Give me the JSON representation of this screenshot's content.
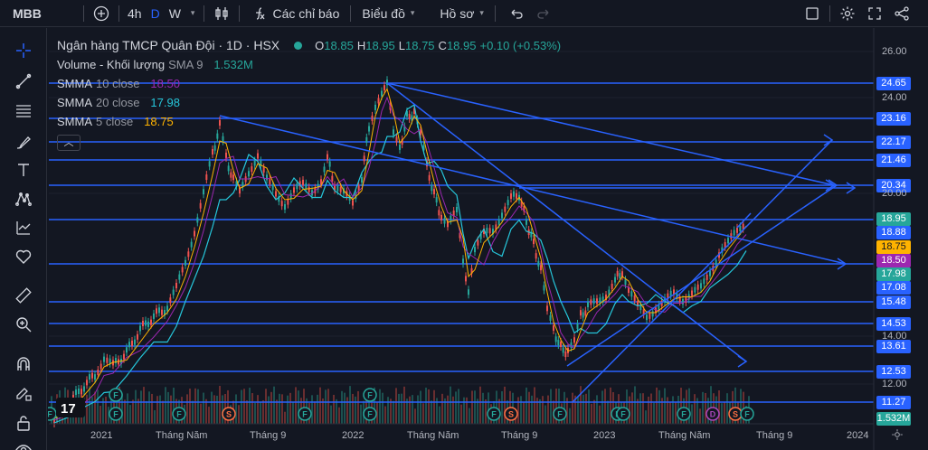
{
  "toolbar": {
    "symbol": "MBB",
    "intervals": [
      "4h",
      "D",
      "W"
    ],
    "active_interval": "D",
    "indicators_label": "Các chỉ báo",
    "chart_type_label": "Biểu đồ",
    "profile_label": "Hồ sơ"
  },
  "legend": {
    "title": "Ngân hàng TMCP Quân Đội · 1D · HSX",
    "ohlc": {
      "o_label": "O",
      "o": "18.85",
      "h_label": "H",
      "h": "18.95",
      "l_label": "L",
      "l": "18.75",
      "c_label": "C",
      "c": "18.95",
      "change": "+0.10 (+0.53%)"
    },
    "volume": {
      "name": "Volume - Khối lượng",
      "sub": "SMA 9",
      "value": "1.532M",
      "color": "#26a69a"
    },
    "smma10": {
      "name": "SMMA",
      "sub": "10 close",
      "value": "18.50",
      "color": "#9c27b0"
    },
    "smma20": {
      "name": "SMMA",
      "sub": "20 close",
      "value": "17.98",
      "color": "#26c6da"
    },
    "smma5": {
      "name": "SMMA",
      "sub": "5 close",
      "value": "18.75",
      "color": "#ffb300"
    }
  },
  "price_scale": {
    "ticks": [
      "26.00",
      "24.00",
      "20.00",
      "14.00",
      "12.00"
    ],
    "labels": [
      {
        "text": "24.65",
        "color": "#2962ff"
      },
      {
        "text": "23.16",
        "color": "#2962ff"
      },
      {
        "text": "22.17",
        "color": "#2962ff"
      },
      {
        "text": "21.46",
        "color": "#2962ff"
      },
      {
        "text": "20.34",
        "color": "#2962ff"
      },
      {
        "text": "18.95",
        "color": "#26a69a"
      },
      {
        "text": "18.88",
        "color": "#2962ff"
      },
      {
        "text": "18.75",
        "color": "#ffb300"
      },
      {
        "text": "18.50",
        "color": "#9c27b0"
      },
      {
        "text": "17.98",
        "color": "#26a69a"
      },
      {
        "text": "17.08",
        "color": "#2962ff"
      },
      {
        "text": "15.48",
        "color": "#2962ff"
      },
      {
        "text": "14.53",
        "color": "#2962ff"
      },
      {
        "text": "13.61",
        "color": "#2962ff"
      },
      {
        "text": "12.53",
        "color": "#2962ff"
      },
      {
        "text": "11.27",
        "color": "#2962ff"
      },
      {
        "text": "1.532M",
        "color": "#26a69a"
      }
    ]
  },
  "time_axis": [
    "2021",
    "Tháng Năm",
    "Tháng 9",
    "2022",
    "Tháng Năm",
    "Tháng 9",
    "2023",
    "Tháng Năm",
    "Tháng 9",
    "2024"
  ],
  "colors": {
    "drawing": "#2962ff",
    "up": "#26a69a",
    "down": "#ef5350",
    "background": "#131722"
  },
  "left_tools": [
    "crosshair-icon",
    "trendline-icon",
    "fib-icon",
    "brush-icon",
    "text-icon",
    "pattern-icon",
    "forecast-icon",
    "favorite-icon",
    "ruler-icon",
    "zoom-icon",
    "magnet-icon",
    "lock-drawing-icon",
    "lock-icon",
    "eye-icon"
  ],
  "events": {
    "letters": [
      "F",
      "S",
      "D"
    ]
  }
}
